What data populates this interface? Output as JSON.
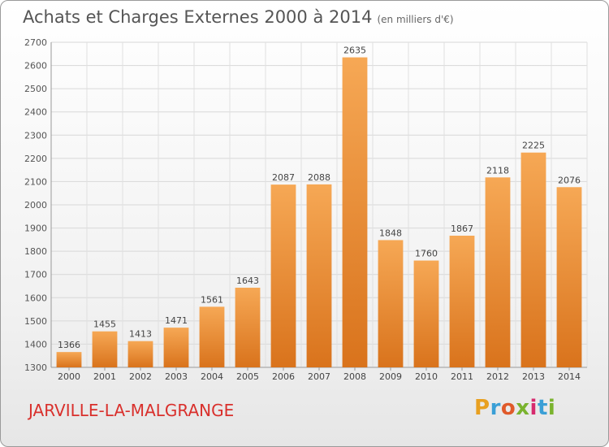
{
  "header": {
    "title": "Achats et Charges Externes 2000 à 2014",
    "subtitle": "(en milliers d'€)"
  },
  "footer": {
    "commune": "JARVILLE-LA-MALGRANGE",
    "logo": {
      "letters": [
        "P",
        "r",
        "o",
        "x",
        "i",
        "t",
        "i"
      ],
      "colors": [
        "#e8a020",
        "#3a9fd6",
        "#e05a2a",
        "#7ab32e",
        "#d62b6e",
        "#3a9fd6",
        "#7ab32e"
      ]
    }
  },
  "chart_data": {
    "type": "bar",
    "title": "Achats et Charges Externes 2000 à 2014",
    "subtitle": "(en milliers d'€)",
    "categories": [
      "2000",
      "2001",
      "2002",
      "2003",
      "2004",
      "2005",
      "2006",
      "2007",
      "2008",
      "2009",
      "2010",
      "2011",
      "2012",
      "2013",
      "2014"
    ],
    "values": [
      1366,
      1455,
      1413,
      1471,
      1561,
      1643,
      2087,
      2088,
      2635,
      1848,
      1760,
      1867,
      2118,
      2225,
      2076
    ],
    "value_labels": [
      "1366",
      "1455",
      "1413",
      "1471",
      "1561",
      "1643",
      "2087",
      "2088",
      "2635",
      "1848",
      "1760",
      "1867",
      "2118",
      "2225",
      "2076"
    ],
    "ylim": [
      1300,
      2700
    ],
    "yticks": [
      1300,
      1400,
      1500,
      1600,
      1700,
      1800,
      1900,
      2000,
      2100,
      2200,
      2300,
      2400,
      2500,
      2600,
      2700
    ],
    "ytick_labels": [
      "1300",
      "1400",
      "1500",
      "1600",
      "1700",
      "1800",
      "1900",
      "2000",
      "2100",
      "2200",
      "2300",
      "2400",
      "2500",
      "2600",
      "2700"
    ],
    "grid": true,
    "bar_color": "#f09a40"
  }
}
